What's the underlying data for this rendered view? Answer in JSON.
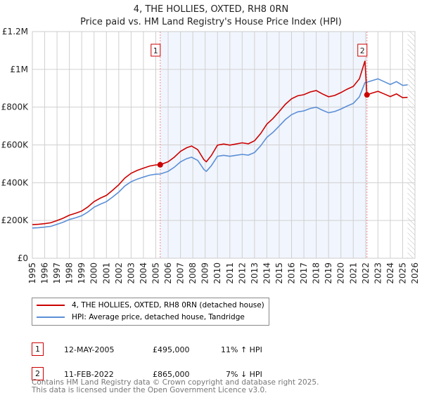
{
  "title": "4, THE HOLLIES, OXTED, RH8 0RN",
  "subtitle": "Price paid vs. HM Land Registry's House Price Index (HPI)",
  "chart_data": {
    "type": "line",
    "xlim": [
      1995,
      2026
    ],
    "ylim": [
      0,
      1200000
    ],
    "x_ticks": [
      "1995",
      "1996",
      "1997",
      "1998",
      "1999",
      "2000",
      "2001",
      "2002",
      "2003",
      "2004",
      "2005",
      "2006",
      "2007",
      "2008",
      "2009",
      "2010",
      "2011",
      "2012",
      "2013",
      "2014",
      "2015",
      "2016",
      "2017",
      "2018",
      "2019",
      "2020",
      "2021",
      "2022",
      "2023",
      "2024",
      "2025",
      "2026"
    ],
    "y_ticks": [
      {
        "v": 0,
        "label": "£0"
      },
      {
        "v": 200000,
        "label": "£200K"
      },
      {
        "v": 400000,
        "label": "£400K"
      },
      {
        "v": 600000,
        "label": "£600K"
      },
      {
        "v": 800000,
        "label": "£800K"
      },
      {
        "v": 1000000,
        "label": "£1M"
      },
      {
        "v": 1200000,
        "label": "£1.2M"
      }
    ],
    "grid": true,
    "shaded_range": [
      2005.36,
      2022.11
    ],
    "hatched_from": 2025.4,
    "series": [
      {
        "name": "4, THE HOLLIES, OXTED, RH8 0RN (detached house)",
        "color": "#cc0000",
        "points": [
          [
            1995,
            178000
          ],
          [
            1995.5,
            180000
          ],
          [
            1996,
            183000
          ],
          [
            1996.5,
            188000
          ],
          [
            1997,
            200000
          ],
          [
            1997.5,
            212000
          ],
          [
            1998,
            228000
          ],
          [
            1998.5,
            238000
          ],
          [
            1999,
            250000
          ],
          [
            1999.5,
            272000
          ],
          [
            2000,
            300000
          ],
          [
            2000.5,
            318000
          ],
          [
            2001,
            333000
          ],
          [
            2001.5,
            360000
          ],
          [
            2002,
            389000
          ],
          [
            2002.5,
            425000
          ],
          [
            2003,
            450000
          ],
          [
            2003.5,
            465000
          ],
          [
            2004,
            477000
          ],
          [
            2004.5,
            488000
          ],
          [
            2005,
            494000
          ],
          [
            2005.36,
            495000
          ],
          [
            2006,
            511000
          ],
          [
            2006.5,
            535000
          ],
          [
            2007,
            566000
          ],
          [
            2007.5,
            585000
          ],
          [
            2007.9,
            594000
          ],
          [
            2008.4,
            575000
          ],
          [
            2008.9,
            522000
          ],
          [
            2009.1,
            511000
          ],
          [
            2009.5,
            544000
          ],
          [
            2010,
            599000
          ],
          [
            2010.5,
            605000
          ],
          [
            2011,
            599000
          ],
          [
            2011.5,
            605000
          ],
          [
            2012,
            611000
          ],
          [
            2012.5,
            606000
          ],
          [
            2013,
            622000
          ],
          [
            2013.5,
            660000
          ],
          [
            2014,
            710000
          ],
          [
            2014.5,
            740000
          ],
          [
            2015,
            777000
          ],
          [
            2015.5,
            815000
          ],
          [
            2016,
            844000
          ],
          [
            2016.5,
            860000
          ],
          [
            2017,
            866000
          ],
          [
            2017.5,
            880000
          ],
          [
            2018,
            888000
          ],
          [
            2018.5,
            870000
          ],
          [
            2019,
            855000
          ],
          [
            2019.5,
            862000
          ],
          [
            2020,
            877000
          ],
          [
            2020.5,
            895000
          ],
          [
            2021,
            910000
          ],
          [
            2021.5,
            950000
          ],
          [
            2021.95,
            1045000
          ],
          [
            2022.11,
            865000
          ],
          [
            2022.5,
            874000
          ],
          [
            2023,
            884000
          ],
          [
            2023.5,
            870000
          ],
          [
            2024,
            856000
          ],
          [
            2024.5,
            870000
          ],
          [
            2025,
            850000
          ],
          [
            2025.4,
            852000
          ]
        ]
      },
      {
        "name": "HPI: Average price, detached house, Tandridge",
        "color": "#5b8fd6",
        "points": [
          [
            1995,
            160000
          ],
          [
            1995.5,
            162000
          ],
          [
            1996,
            165000
          ],
          [
            1996.5,
            169000
          ],
          [
            1997,
            180000
          ],
          [
            1997.5,
            191000
          ],
          [
            1998,
            205000
          ],
          [
            1998.5,
            214000
          ],
          [
            1999,
            225000
          ],
          [
            1999.5,
            245000
          ],
          [
            2000,
            270000
          ],
          [
            2000.5,
            286000
          ],
          [
            2001,
            300000
          ],
          [
            2001.5,
            324000
          ],
          [
            2002,
            350000
          ],
          [
            2002.5,
            383000
          ],
          [
            2003,
            405000
          ],
          [
            2003.5,
            419000
          ],
          [
            2004,
            430000
          ],
          [
            2004.5,
            440000
          ],
          [
            2005,
            445000
          ],
          [
            2005.36,
            446000
          ],
          [
            2006,
            460000
          ],
          [
            2006.5,
            482000
          ],
          [
            2007,
            510000
          ],
          [
            2007.5,
            527000
          ],
          [
            2007.9,
            535000
          ],
          [
            2008.4,
            518000
          ],
          [
            2008.9,
            470000
          ],
          [
            2009.1,
            460000
          ],
          [
            2009.5,
            490000
          ],
          [
            2010,
            540000
          ],
          [
            2010.5,
            545000
          ],
          [
            2011,
            540000
          ],
          [
            2011.5,
            545000
          ],
          [
            2012,
            550000
          ],
          [
            2012.5,
            546000
          ],
          [
            2013,
            560000
          ],
          [
            2013.5,
            595000
          ],
          [
            2014,
            640000
          ],
          [
            2014.5,
            667000
          ],
          [
            2015,
            700000
          ],
          [
            2015.5,
            734000
          ],
          [
            2016,
            760000
          ],
          [
            2016.5,
            775000
          ],
          [
            2017,
            780000
          ],
          [
            2017.5,
            793000
          ],
          [
            2018,
            800000
          ],
          [
            2018.5,
            784000
          ],
          [
            2019,
            770000
          ],
          [
            2019.5,
            777000
          ],
          [
            2020,
            790000
          ],
          [
            2020.5,
            806000
          ],
          [
            2021,
            820000
          ],
          [
            2021.5,
            855000
          ],
          [
            2021.95,
            930000
          ],
          [
            2022.11,
            932000
          ],
          [
            2022.5,
            940000
          ],
          [
            2023,
            950000
          ],
          [
            2023.5,
            935000
          ],
          [
            2024,
            920000
          ],
          [
            2024.5,
            935000
          ],
          [
            2025,
            915000
          ],
          [
            2025.4,
            918000
          ]
        ]
      }
    ],
    "sales": [
      {
        "label": "1",
        "x": 2005.36,
        "y": 495000
      },
      {
        "label": "2",
        "x": 2022.11,
        "y": 865000
      }
    ]
  },
  "legend": {
    "property": "4, THE HOLLIES, OXTED, RH8 0RN (detached house)",
    "hpi": "HPI: Average price, detached house, Tandridge"
  },
  "transactions": [
    {
      "num": "1",
      "date": "12-MAY-2005",
      "price": "£495,000",
      "delta": "11% ↑ HPI"
    },
    {
      "num": "2",
      "date": "11-FEB-2022",
      "price": "£865,000",
      "delta": "7% ↓ HPI"
    }
  ],
  "footer": {
    "line1": "Contains HM Land Registry data © Crown copyright and database right 2025.",
    "line2": "This data is licensed under the Open Government Licence v3.0."
  }
}
